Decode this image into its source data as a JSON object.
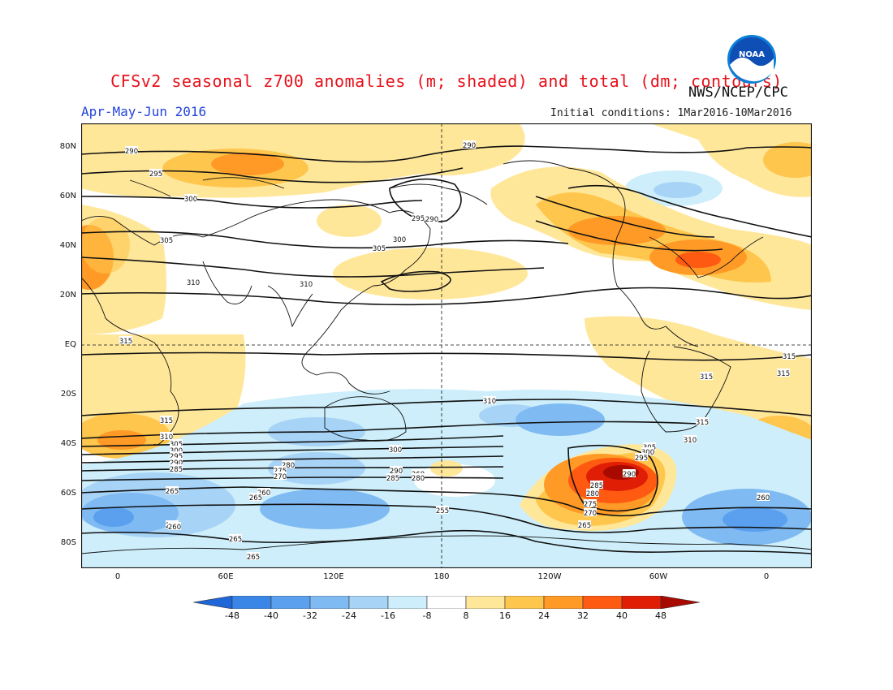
{
  "title": "CFSv2 seasonal z700 anomalies (m; shaded) and total (dm; contours)",
  "season": "Apr-May-Jun 2016",
  "agency": "NWS/NCEP/CPC",
  "initial_conditions": "Initial conditions: 1Mar2016-10Mar2016",
  "logo_text": "NOAA",
  "x_ticks": [
    "0",
    "60E",
    "120E",
    "180",
    "120W",
    "60W",
    "0"
  ],
  "y_ticks": [
    "80N",
    "60N",
    "40N",
    "20N",
    "EQ",
    "20S",
    "40S",
    "60S",
    "80S"
  ],
  "colorbar": {
    "labels": [
      "-48",
      "-40",
      "-32",
      "-24",
      "-16",
      "-8",
      "8",
      "16",
      "24",
      "32",
      "40",
      "48"
    ],
    "colors": [
      "#1f66d9",
      "#3a86e6",
      "#5aa0ee",
      "#7fbaf3",
      "#a7d3f6",
      "#cdeefa",
      "#ffffff",
      "#ffe79a",
      "#ffc64d",
      "#ff9a26",
      "#ff5a12",
      "#e01e05",
      "#a80a00"
    ]
  },
  "contour_labels": [
    "290",
    "295",
    "300",
    "305",
    "310",
    "315",
    "290",
    "295",
    "300",
    "305",
    "310",
    "315",
    "310",
    "305",
    "300",
    "295",
    "290",
    "285",
    "280",
    "275",
    "270",
    "265",
    "260",
    "255",
    "315",
    "310",
    "305",
    "300",
    "295",
    "290",
    "285",
    "280",
    "275",
    "270",
    "265",
    "260",
    "255",
    "290",
    "315",
    "315",
    "260",
    "265",
    "260",
    "265",
    "265",
    "285",
    "280",
    "290",
    "300",
    "310",
    "315"
  ]
}
